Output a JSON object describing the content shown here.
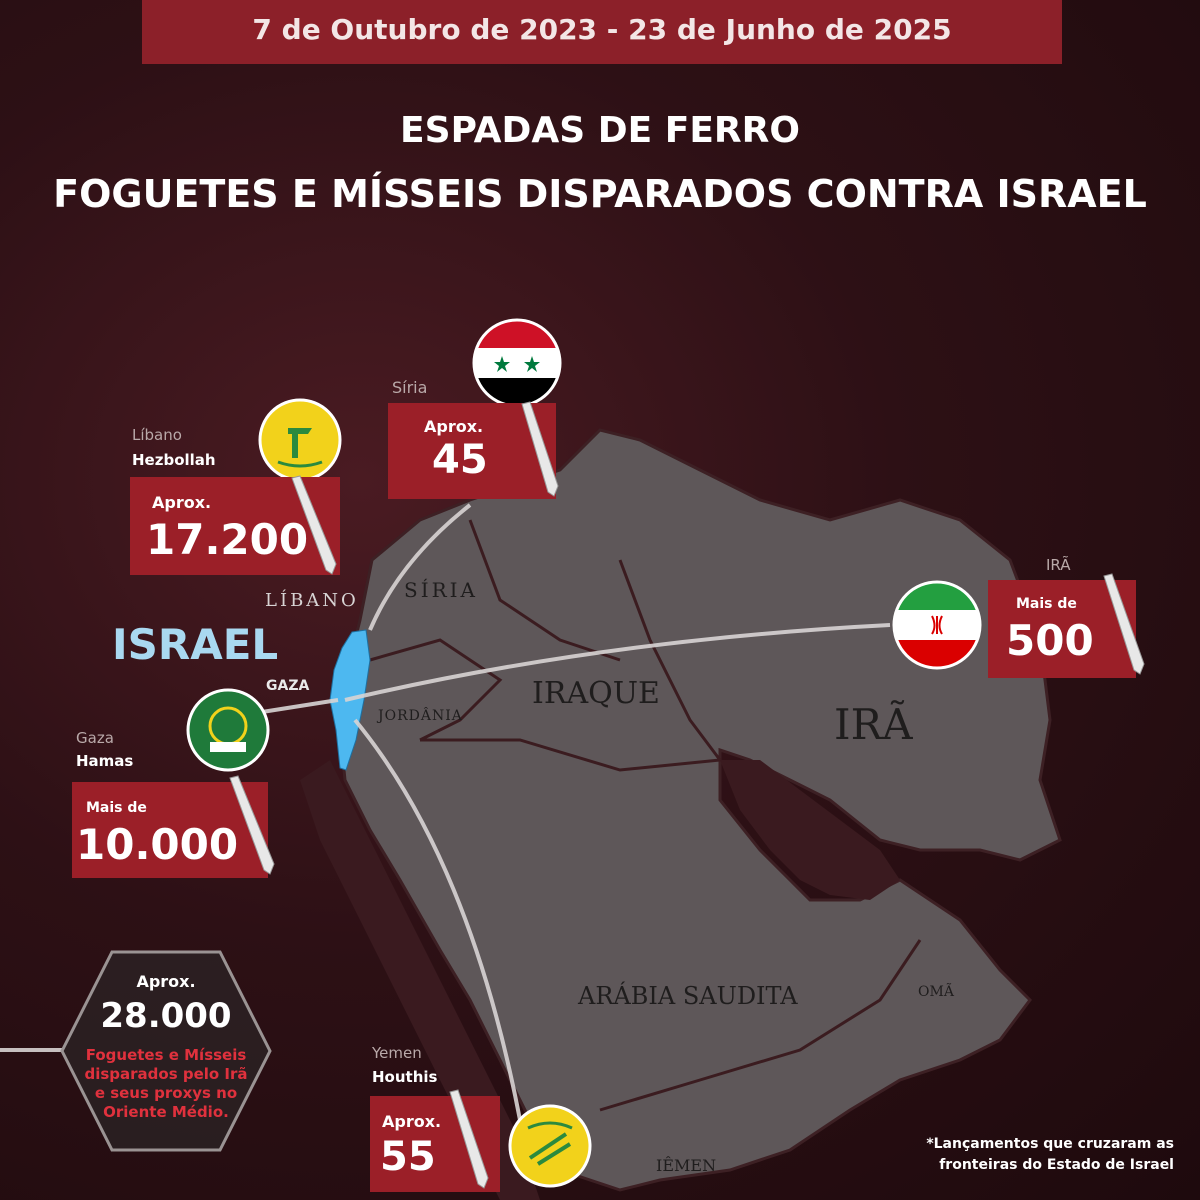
{
  "header": {
    "date_range": "7 de Outubro de 2023 - 23 de Junho de 2025",
    "title_line1": "ESPADAS DE FERRO",
    "title_line2": "FOGUETES E MÍSSEIS DISPARADOS CONTRA ISRAEL"
  },
  "sources": {
    "lebanon": {
      "country": "Líbano",
      "group": "Hezbollah",
      "prefix": "Aprox.",
      "value": "17.200"
    },
    "syria": {
      "country": "Síria",
      "prefix": "Aprox.",
      "value": "45"
    },
    "iran": {
      "country": "IRÃ",
      "prefix": "Mais de",
      "value": "500"
    },
    "gaza": {
      "country": "Gaza",
      "group": "Hamas",
      "prefix": "Mais de",
      "value": "10.000"
    },
    "yemen": {
      "country": "Yemen",
      "group": "Houthis",
      "prefix": "Aprox.",
      "value": "55"
    }
  },
  "map_labels": {
    "israel": "ISRAEL",
    "gaza": "GAZA",
    "lebanon": "LÍBANO",
    "syria": "SÍRIA",
    "jordan": "JORDÂNIA",
    "iraq": "IRAQUE",
    "iran": "IRÃ",
    "saudi": "ARÁBIA SAUDITA",
    "oman": "OMÃ",
    "yemen": "IÊMEN"
  },
  "summary": {
    "prefix": "Aprox.",
    "value": "28.000",
    "line1": "Foguetes e Mísseis",
    "line2": "disparados pelo Irã",
    "line3": "e seus proxys no",
    "line4": "Oriente Médio."
  },
  "footnote": {
    "line1": "*Lançamentos que cruzaram as",
    "line2": "fronteiras do Estado de Israel"
  },
  "colors": {
    "accent_red": "#9b1f28",
    "israel_blue": "#4db8f0",
    "land": "#5e5759"
  }
}
